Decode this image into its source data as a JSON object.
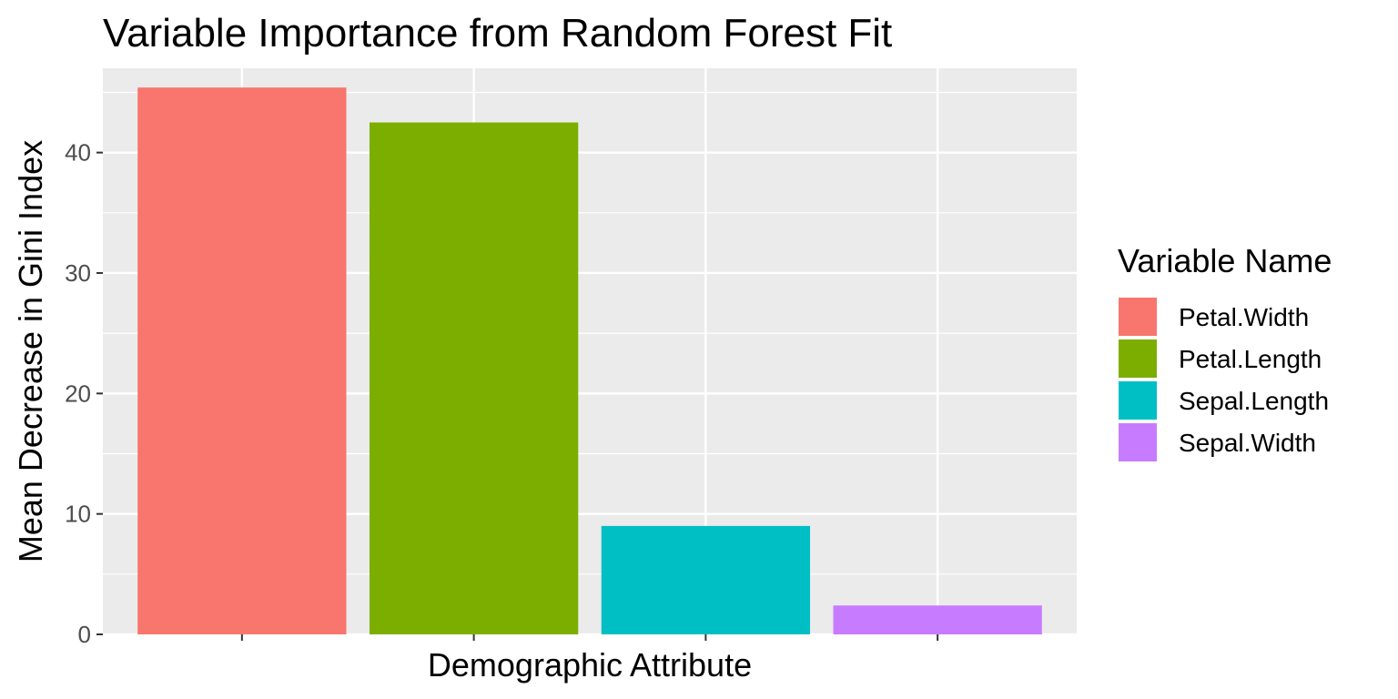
{
  "chart_data": {
    "type": "bar",
    "title": "Variable Importance from Random Forest Fit",
    "xlabel": "Demographic Attribute",
    "ylabel": "Mean Decrease in Gini Index",
    "ylim": [
      0,
      47
    ],
    "yticks": [
      0,
      10,
      20,
      30,
      40
    ],
    "grid": true,
    "x_tick_labels_shown": false,
    "legend": {
      "title": "Variable Name",
      "position": "right"
    },
    "categories": [
      "Petal.Width",
      "Petal.Length",
      "Sepal.Length",
      "Sepal.Width"
    ],
    "values": [
      45.4,
      42.5,
      9.0,
      2.4
    ],
    "colors": [
      "#F8766D",
      "#7CAE00",
      "#00BFC4",
      "#C77CFF"
    ],
    "panel_background": "#EBEBEB",
    "grid_color": "#FFFFFF"
  }
}
